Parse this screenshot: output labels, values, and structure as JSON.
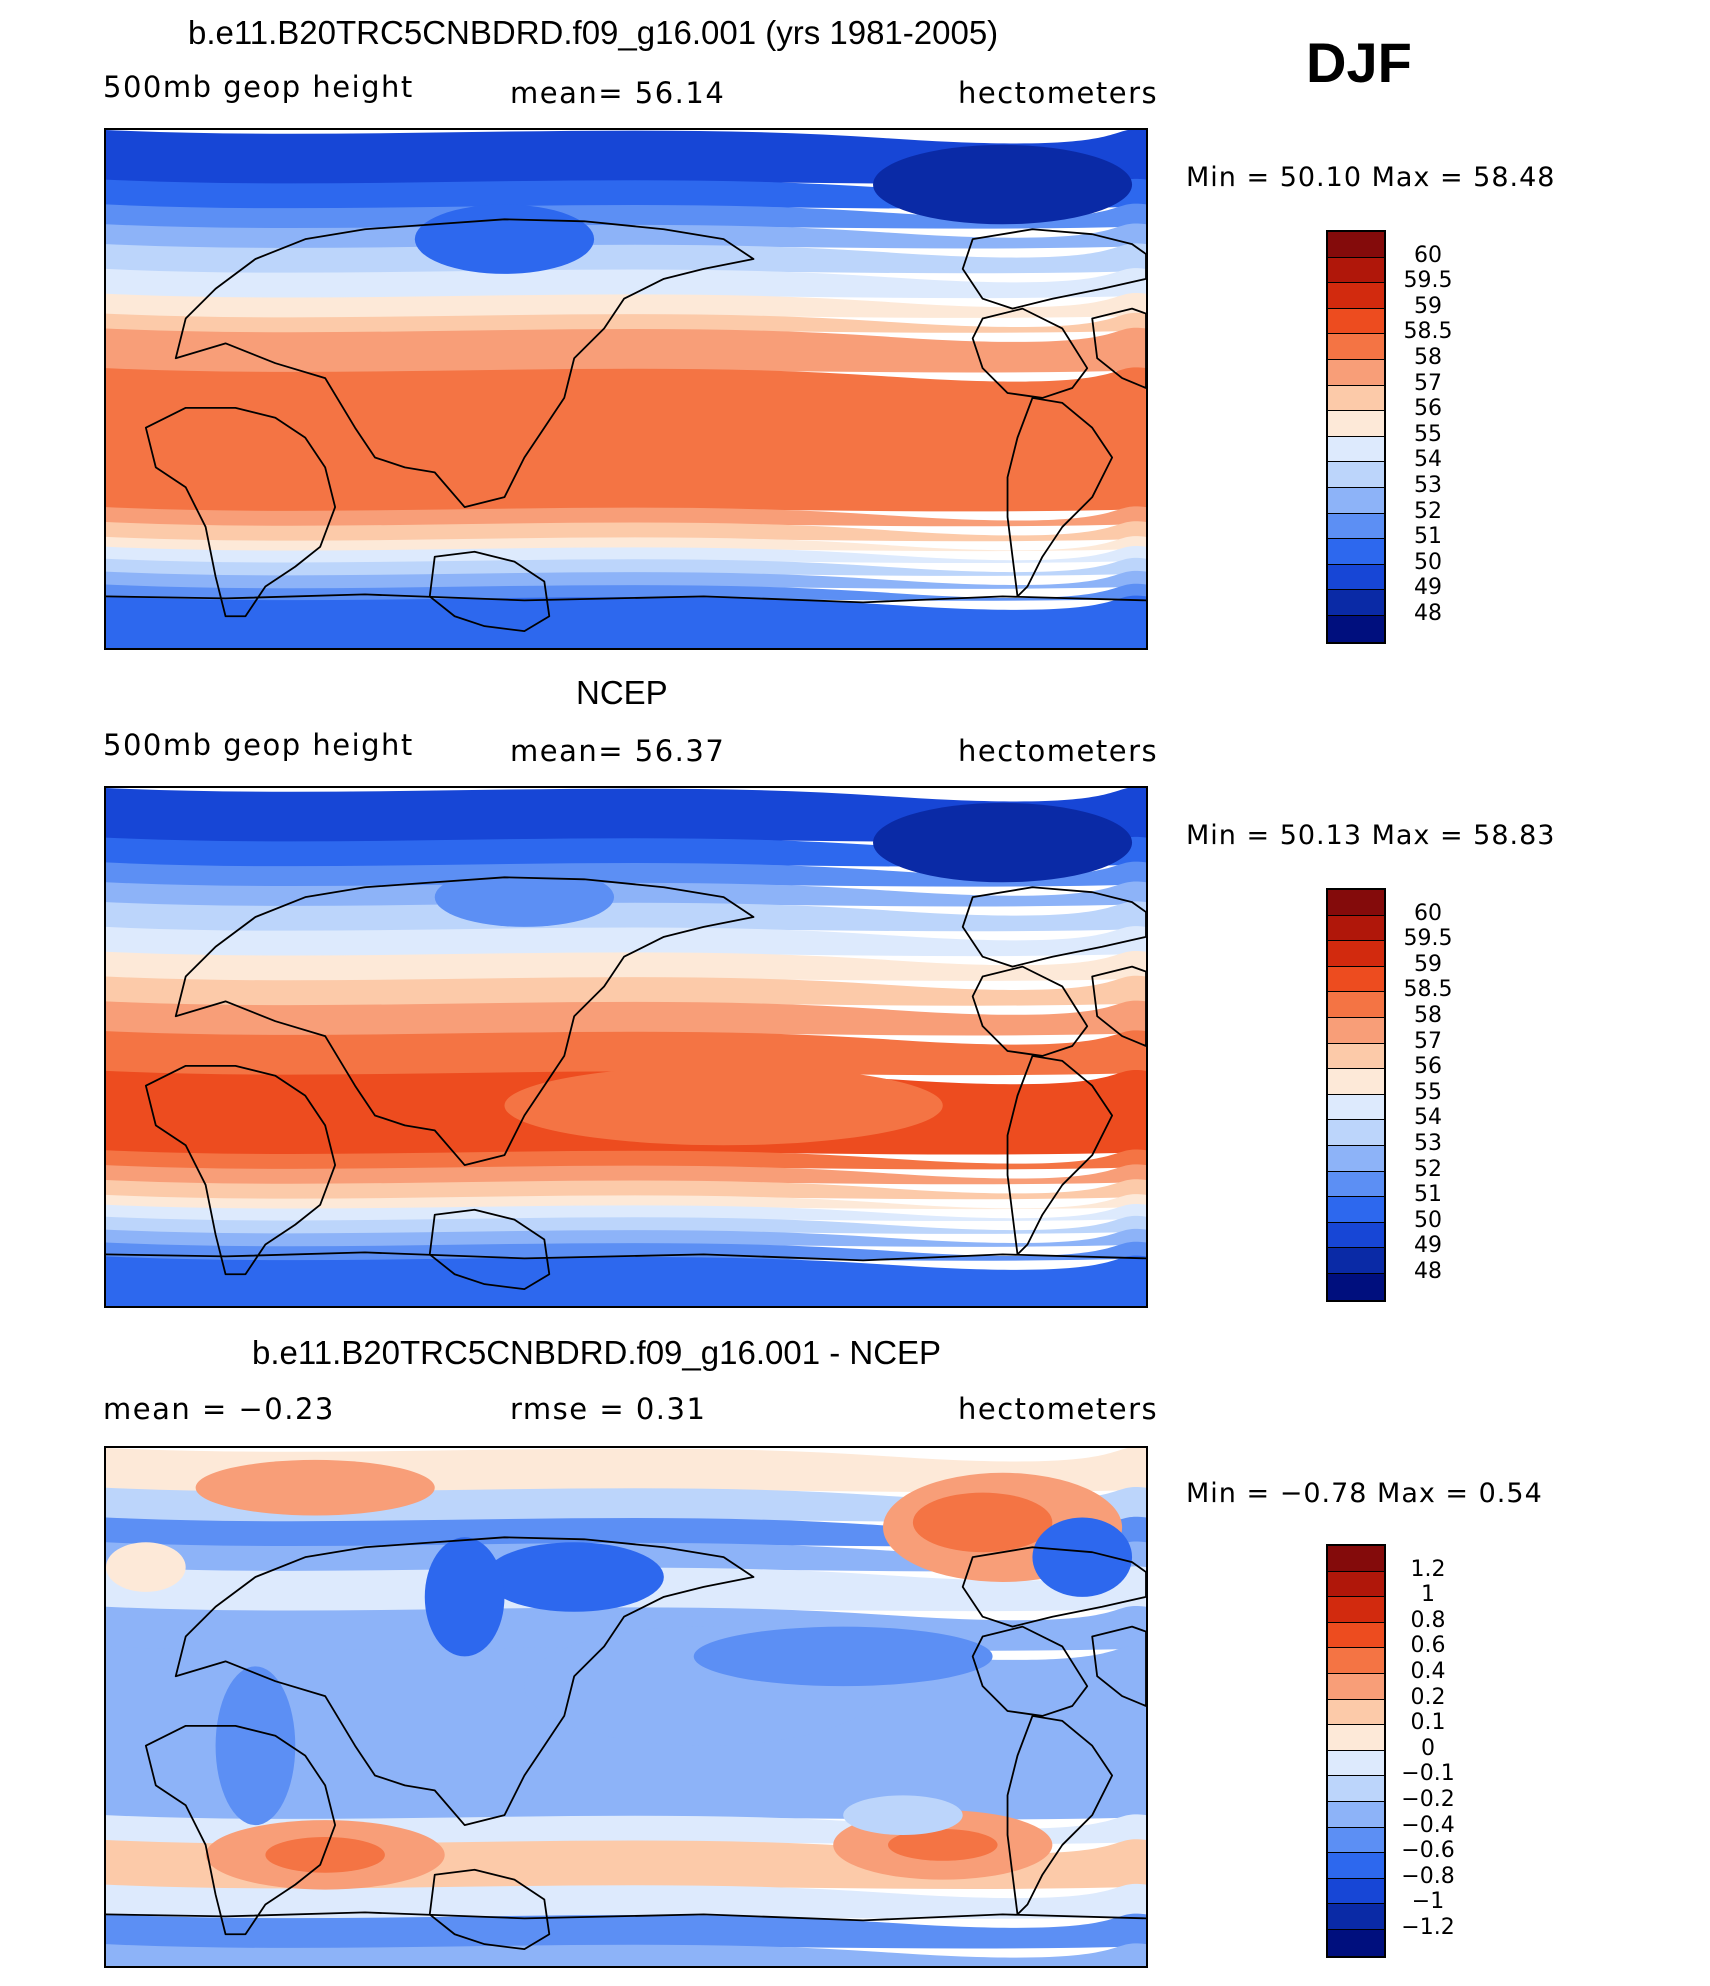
{
  "season": "DJF",
  "palette": {
    "c0": "#000f7e",
    "c1": "#0a2aa6",
    "c2": "#1746d6",
    "c3": "#2d68ee",
    "c4": "#5c8ff4",
    "c5": "#8db3f8",
    "c6": "#bcd5fb",
    "c7": "#ddeafd",
    "c8": "#fde9d8",
    "c9": "#fccaa9",
    "c10": "#f89e78",
    "c11": "#f47444",
    "c12": "#ed4c1f",
    "c13": "#d22a0e",
    "c14": "#b0170a",
    "c15": "#840b0b"
  },
  "panels": [
    {
      "title": "b.e11.B20TRC5CNBDRD.f09_g16.001 (yrs 1981-2005)",
      "left_label": "500mb geop height",
      "mid_label": "mean=   56.14",
      "right_label": "hectometers",
      "minmax": "Min =   50.10 Max =   58.48",
      "colorbar_ticks": [
        "60",
        "59.5",
        "59",
        "58.5",
        "58",
        "57",
        "56",
        "55",
        "54",
        "53",
        "52",
        "51",
        "50",
        "49",
        "48"
      ]
    },
    {
      "title": "NCEP",
      "left_label": "500mb geop height",
      "mid_label": "mean=   56.37",
      "right_label": "hectometers",
      "minmax": "Min =   50.13 Max =   58.83",
      "colorbar_ticks": [
        "60",
        "59.5",
        "59",
        "58.5",
        "58",
        "57",
        "56",
        "55",
        "54",
        "53",
        "52",
        "51",
        "50",
        "49",
        "48"
      ]
    },
    {
      "title": "b.e11.B20TRC5CNBDRD.f09_g16.001 - NCEP",
      "left_label": "mean =   −0.23",
      "mid_label": "rmse =    0.31",
      "right_label": "hectometers",
      "minmax": "Min =  −0.78 Max =    0.54",
      "colorbar_ticks": [
        "1.2",
        "1",
        "0.8",
        "0.6",
        "0.4",
        "0.2",
        "0.1",
        "0",
        "−0.1",
        "−0.2",
        "−0.4",
        "−0.6",
        "−0.8",
        "−1",
        "−1.2"
      ]
    }
  ]
}
